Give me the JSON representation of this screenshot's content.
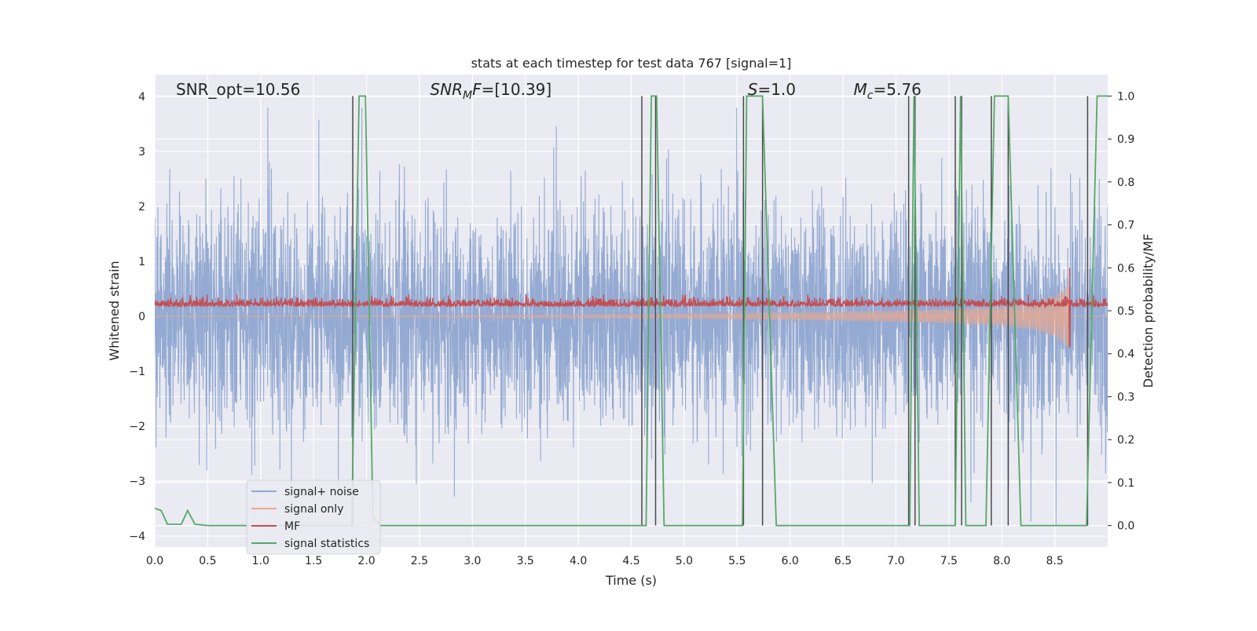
{
  "chart_data": {
    "type": "line",
    "title": "stats at each timestep for test data 767 [signal=1]",
    "xlabel": "Time (s)",
    "ylabel_left": "Whitened strain",
    "ylabel_right": "Detection probability/MF",
    "xlim": [
      0,
      9
    ],
    "ylim_left": [
      -4.2,
      4.4
    ],
    "ylim_right": [
      -0.05,
      1.05
    ],
    "x_ticks": [
      "0.0",
      "0.5",
      "1.0",
      "1.5",
      "2.0",
      "2.5",
      "3.0",
      "3.5",
      "4.0",
      "4.5",
      "5.0",
      "5.5",
      "6.0",
      "6.5",
      "7.0",
      "7.5",
      "8.0",
      "8.5"
    ],
    "y_ticks_left": [
      "4",
      "3",
      "2",
      "1",
      "0",
      "−1",
      "−2",
      "−3",
      "−4"
    ],
    "y_ticks_right": [
      "1.0",
      "0.9",
      "0.8",
      "0.7",
      "0.6",
      "0.5",
      "0.4",
      "0.3",
      "0.2",
      "0.1",
      "0.0"
    ],
    "grid": true,
    "legend_position": "lower-left",
    "annotations": [
      {
        "html": "SNR_opt=10.56",
        "x": 0.2
      },
      {
        "html": "<tspan font-style='italic'>SNR</tspan><tspan font-style='italic' font-size='14' dy='5'>M</tspan><tspan font-style='italic' dy='-5'>F</tspan>=[10.39]",
        "x": 2.6
      },
      {
        "html": "<tspan font-style='italic'>S</tspan>=1.0",
        "x": 5.6
      },
      {
        "html": "<tspan font-style='italic'>M</tspan><tspan font-style='italic' font-size='14' dy='5'>c</tspan><tspan dy='-5'>=5.76</tspan>",
        "x": 6.6
      }
    ],
    "series": [
      {
        "name": "signal+ noise",
        "color": "#8fa7d0",
        "kind": "noise",
        "amplitude_std": 0.95,
        "max_abs": 3.8
      },
      {
        "name": "signal only",
        "color": "#e7a890",
        "kind": "chirp",
        "envelope": {
          "x": [
            0,
            3.0,
            5.0,
            6.5,
            7.5,
            8.0,
            8.3,
            8.5,
            8.64
          ],
          "amp": [
            0.0,
            0.02,
            0.04,
            0.08,
            0.13,
            0.18,
            0.25,
            0.38,
            0.6
          ]
        }
      },
      {
        "name": "MF",
        "color": "#c44e52",
        "kind": "mf_band",
        "baseline": 0.1,
        "band_top": 0.25,
        "peak": {
          "x": 8.64,
          "up": 1.0,
          "down": -0.85
        }
      },
      {
        "name": "signal statistics",
        "color": "#55a868",
        "kind": "step",
        "x": [
          0,
          0.06,
          0.12,
          0.25,
          0.31,
          0.38,
          0.5,
          1.86,
          1.93,
          1.99,
          2.06,
          2.13,
          4.6,
          4.64,
          4.69,
          4.74,
          4.81,
          5.55,
          5.59,
          5.64,
          5.74,
          5.87,
          7.13,
          7.17,
          7.22,
          7.56,
          7.61,
          7.66,
          7.85,
          7.93,
          8.06,
          8.18,
          8.8,
          8.9,
          9.0
        ],
        "y": [
          0.04,
          0.035,
          0.003,
          0.003,
          0.035,
          0.003,
          0.0,
          0.0,
          1.0,
          1.0,
          0.02,
          0.0,
          0.0,
          0.0,
          1.0,
          1.0,
          0.0,
          0.0,
          1.0,
          1.0,
          1.0,
          0.0,
          0.0,
          1.0,
          0.0,
          0.0,
          1.0,
          0.0,
          0.0,
          1.0,
          1.0,
          0.0,
          0.0,
          1.0,
          1.0
        ]
      }
    ],
    "vertical_markers": {
      "color": "#4a4a4a",
      "x": [
        1.87,
        4.6,
        4.73,
        5.56,
        5.74,
        7.12,
        7.18,
        7.56,
        7.62,
        7.9,
        8.06,
        8.81
      ],
      "y_top": 1.0,
      "y_bottom": 0.0
    }
  }
}
